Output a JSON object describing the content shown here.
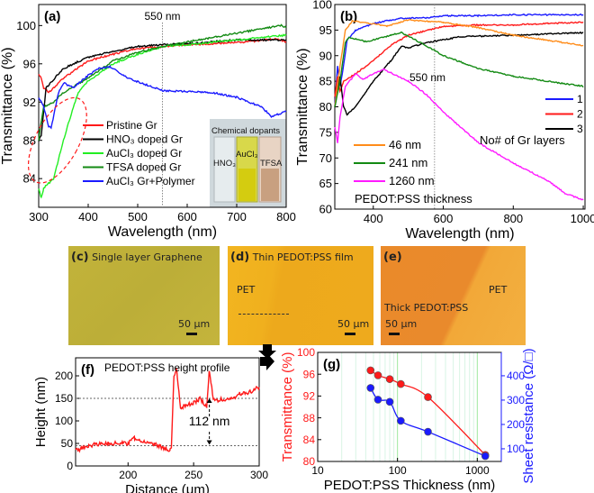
{
  "chart_data": [
    {
      "id": "a",
      "type": "line",
      "panel_label": "(a)",
      "xlabel": "Wavelength (nm)",
      "ylabel": "Transmittance (%)",
      "xlim": [
        300,
        800
      ],
      "ylim": [
        81,
        102.2
      ],
      "xticks": [
        300,
        400,
        500,
        600,
        700,
        800
      ],
      "yticks": [
        84,
        88,
        92,
        96,
        100
      ],
      "annotation": "550 nm",
      "marker_x": 550,
      "inset": {
        "title": "Chemical dopants",
        "labels": [
          "HNO₃",
          "AuCl₃",
          "TFSA"
        ]
      },
      "series": [
        {
          "name": "Pristine Gr",
          "color": "#ff1a1a",
          "x": [
            300,
            305,
            310,
            320,
            350,
            400,
            450,
            500,
            550,
            600,
            700,
            780,
            800
          ],
          "y": [
            95,
            94.5,
            93.5,
            93,
            94.5,
            96.3,
            97,
            97.6,
            97.8,
            98,
            98.2,
            98.6,
            98.3
          ]
        },
        {
          "name": "HNO₃ doped Gr",
          "color": "#000000",
          "x": [
            300,
            305,
            312,
            315,
            350,
            400,
            450,
            500,
            550,
            600,
            700,
            800
          ],
          "y": [
            88,
            88.5,
            92,
            93.5,
            95.5,
            96.7,
            97.3,
            97.8,
            98,
            98.1,
            98.5,
            98.5
          ]
        },
        {
          "name": "AuCl₃ doped Gr",
          "color": "#22ee22",
          "x": [
            300,
            305,
            310,
            330,
            350,
            370,
            380,
            400,
            450,
            500,
            550,
            600,
            700,
            800
          ],
          "y": [
            83,
            82,
            83,
            84,
            88,
            91.5,
            93,
            94.2,
            96,
            97,
            97.8,
            98,
            98.5,
            99
          ]
        },
        {
          "name": "TFSA doped Gr",
          "color": "#138a13",
          "x": [
            300,
            305,
            310,
            330,
            350,
            400,
            450,
            500,
            550,
            600,
            700,
            790,
            800
          ],
          "y": [
            88,
            90,
            91.5,
            92,
            93,
            94.5,
            96.3,
            97.2,
            97.8,
            98.3,
            99.2,
            100,
            99.8
          ]
        },
        {
          "name": "AuCl₃ Gr+Polymer",
          "color": "#1a1aff",
          "x": [
            300,
            305,
            310,
            320,
            325,
            340,
            350,
            370,
            400,
            420,
            445,
            480,
            550,
            650,
            700,
            750,
            770,
            800
          ],
          "y": [
            92.5,
            92,
            91.5,
            89.5,
            89.3,
            93,
            94,
            93.5,
            94.8,
            95.5,
            95.7,
            94.5,
            93.2,
            93,
            92.5,
            91.5,
            90.5,
            91
          ]
        }
      ]
    },
    {
      "id": "b",
      "type": "line",
      "panel_label": "(b)",
      "xlabel": "Wavelength (nm)",
      "ylabel": "Transmittance (%)",
      "xlim": [
        290,
        1005
      ],
      "ylim": [
        60,
        100
      ],
      "xticks": [
        400,
        600,
        800,
        1000
      ],
      "yticks": [
        60,
        65,
        70,
        75,
        80,
        85,
        90,
        95,
        100
      ],
      "annotation": "550 nm",
      "marker_x": 575,
      "legend_layers_title": "No# of Gr layers",
      "legend_thickness_title": "PEDOT:PSS thickness",
      "series": [
        {
          "name": "1",
          "group": "layers",
          "color": "#1a1aff",
          "x": [
            290,
            298,
            305,
            315,
            325,
            350,
            400,
            480,
            550,
            600,
            700,
            800,
            900,
            1000
          ],
          "y": [
            80,
            88,
            84,
            88,
            93,
            95,
            96.3,
            97.3,
            97.4,
            97.8,
            97.8,
            98,
            98,
            98
          ]
        },
        {
          "name": "2",
          "group": "layers",
          "color": "#ff1a1a",
          "x": [
            290,
            298,
            305,
            315,
            350,
            400,
            450,
            500,
            600,
            700,
            800,
            900,
            1000
          ],
          "y": [
            82,
            86,
            83,
            85,
            86.5,
            89,
            92,
            94,
            95.7,
            96,
            96,
            96.3,
            96.5
          ]
        },
        {
          "name": "3",
          "group": "layers",
          "color": "#000000",
          "x": [
            290,
            305,
            315,
            325,
            350,
            400,
            450,
            480,
            500,
            550,
            650,
            800,
            1000
          ],
          "y": [
            80,
            86,
            80,
            78.5,
            80,
            85,
            89,
            91.8,
            91.5,
            92.5,
            93.7,
            94,
            94.5
          ]
        },
        {
          "name": "46 nm",
          "group": "thickness",
          "color": "#ff8c1a",
          "x": [
            290,
            305,
            320,
            340,
            400,
            440,
            500,
            600,
            700,
            800,
            900,
            1000
          ],
          "y": [
            80,
            88,
            95,
            96.8,
            96.2,
            95.8,
            97,
            96.5,
            95.5,
            94,
            93,
            92
          ]
        },
        {
          "name": "241 nm",
          "group": "thickness",
          "color": "#138a13",
          "x": [
            290,
            305,
            320,
            330,
            350,
            380,
            450,
            480,
            550,
            600,
            700,
            800,
            900,
            1000
          ],
          "y": [
            80,
            85,
            92.5,
            93.5,
            93.3,
            92.7,
            94,
            94.5,
            92,
            90,
            87.5,
            86,
            85,
            84
          ]
        },
        {
          "name": "1260 nm",
          "group": "thickness",
          "color": "#ff1aff",
          "x": [
            290,
            298,
            305,
            320,
            350,
            370,
            400,
            430,
            500,
            550,
            600,
            700,
            800,
            900,
            950,
            1000
          ],
          "y": [
            76,
            73,
            78,
            84,
            86.5,
            85.3,
            86.5,
            87.3,
            85,
            82.5,
            79,
            73,
            69,
            65.5,
            63,
            61.8
          ]
        }
      ]
    },
    {
      "id": "f",
      "type": "line",
      "panel_label": "(f)",
      "title": "PEDOT:PSS height profile",
      "xlabel": "Distance (μm)",
      "ylabel": "Height (nm)",
      "xlim": [
        160,
        300
      ],
      "ylim": [
        0,
        240
      ],
      "xticks": [
        200,
        250,
        300
      ],
      "yticks": [
        0,
        50,
        100,
        150,
        200
      ],
      "reference_lines": [
        150,
        45
      ],
      "annotation": "112 nm",
      "series": [
        {
          "name": "height",
          "color": "#ff1a1a",
          "x": [
            160,
            165,
            170,
            180,
            200,
            205,
            220,
            232,
            233,
            235,
            237,
            240,
            250,
            255,
            260,
            262,
            265,
            280,
            285,
            290,
            300
          ],
          "y": [
            35,
            38,
            45,
            50,
            50,
            62,
            48,
            35,
            40,
            200,
            215,
            130,
            140,
            150,
            130,
            215,
            145,
            150,
            160,
            160,
            175
          ]
        }
      ]
    },
    {
      "id": "g",
      "type": "scatter",
      "panel_label": "(g)",
      "xlabel": "PEDOT:PSS Thickness (nm)",
      "xscale": "log",
      "xlim": [
        10,
        2000
      ],
      "xticks": [
        10,
        100,
        1000
      ],
      "ylabel": "Transmittance (%)",
      "ylim": [
        80,
        100
      ],
      "yticks": [
        80,
        84,
        88,
        92,
        96,
        100
      ],
      "y2label": "Sheet resistance (Ω/□)",
      "y2lim": [
        48,
        496
      ],
      "y2ticks": [
        100,
        200,
        300,
        400
      ],
      "series": [
        {
          "name": "Transmittance",
          "axis": "left",
          "color": "#ff1a1a",
          "x": [
            46,
            57,
            80,
            110,
            241,
            1260
          ],
          "y": [
            96.7,
            95.8,
            95.1,
            94.2,
            91.8,
            81.2
          ]
        },
        {
          "name": "Sheet resistance",
          "axis": "right",
          "color": "#1a1aff",
          "x": [
            46,
            57,
            80,
            110,
            241,
            1260
          ],
          "y": [
            350,
            302,
            293,
            215,
            170,
            70
          ]
        }
      ]
    }
  ],
  "images": {
    "c": {
      "label": "(c)",
      "caption": "Single layer Graphene",
      "scale": "50 μm"
    },
    "d": {
      "label": "(d)",
      "caption": "Thin PEDOT:PSS film",
      "region": "PET",
      "scale": "50 μm"
    },
    "e": {
      "label": "(e)",
      "region1": "PET",
      "region2": "Thick PEDOT:PSS",
      "scale": "50 μm"
    }
  }
}
